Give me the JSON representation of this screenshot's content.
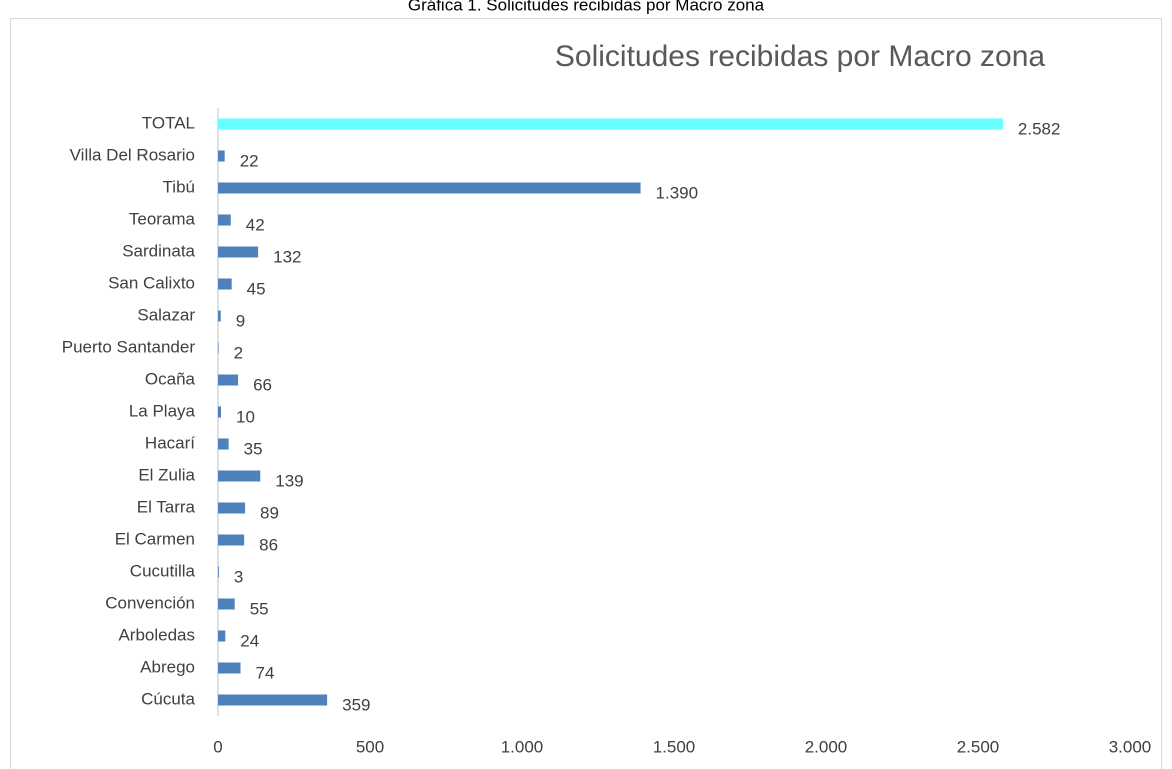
{
  "caption": "Gráfica 1. Solicitudes recibidas por Macro zona",
  "chart_data": {
    "type": "bar",
    "orientation": "horizontal",
    "title": "Solicitudes recibidas por Macro zona",
    "categories": [
      "TOTAL",
      "Villa Del Rosario",
      "Tibú",
      "Teorama",
      "Sardinata",
      "San Calixto",
      "Salazar",
      "Puerto Santander",
      "Ocaña",
      "La Playa",
      "Hacarí",
      "El Zulia",
      "El Tarra",
      "El Carmen",
      "Cucutilla",
      "Convención",
      "Arboledas",
      "Abrego",
      "Cúcuta"
    ],
    "values": [
      2582,
      22,
      1390,
      42,
      132,
      45,
      9,
      2,
      66,
      10,
      35,
      139,
      89,
      86,
      3,
      55,
      24,
      74,
      359
    ],
    "value_labels": [
      "2.582",
      "22",
      "1.390",
      "42",
      "132",
      "45",
      "9",
      "2",
      "66",
      "10",
      "35",
      "139",
      "89",
      "86",
      "3",
      "55",
      "24",
      "74",
      "359"
    ],
    "colors": [
      "#66ffff",
      "#4f81bd",
      "#4f81bd",
      "#4f81bd",
      "#4f81bd",
      "#4f81bd",
      "#4f81bd",
      "#4f81bd",
      "#4f81bd",
      "#4f81bd",
      "#4f81bd",
      "#4f81bd",
      "#4f81bd",
      "#4f81bd",
      "#4f81bd",
      "#4f81bd",
      "#4f81bd",
      "#4f81bd",
      "#4f81bd"
    ],
    "xlim": [
      0,
      3000
    ],
    "xticks": [
      0,
      500,
      {
        "value": 1000,
        "label": "1.000"
      },
      {
        "value": 1500,
        "label": "1.500"
      },
      {
        "value": 2000,
        "label": "2.000"
      },
      {
        "value": 2500,
        "label": "2.500"
      },
      {
        "value": 3000,
        "label": "3.000"
      }
    ],
    "grid": false
  }
}
